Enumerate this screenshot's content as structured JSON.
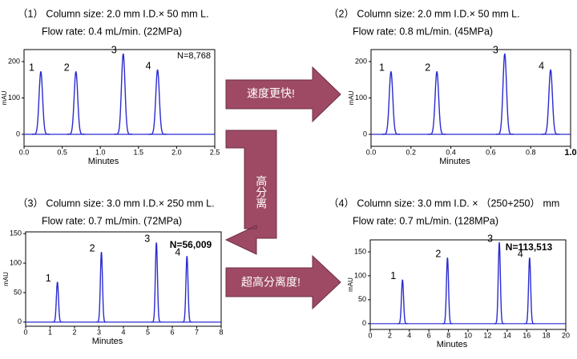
{
  "chart_data": [
    {
      "type": "peaks",
      "title": "（1） Column size: 2.0 mm I.D.× 50 mm L.",
      "subtitle": "Flow rate: 0.4 mL/min. (22MPa)",
      "x_label": "Minutes",
      "y_label": "mAU",
      "color": "#2b2bd0",
      "xlim": [
        0,
        2.5
      ],
      "xticks": [
        {
          "value": 0,
          "label": "0.0"
        },
        0.5,
        {
          "value": 1,
          "label": "1.0"
        },
        1.5,
        {
          "value": 2,
          "label": "2.0"
        },
        2.5
      ],
      "ylim": [
        -33,
        233
      ],
      "yticks": [
        0,
        100,
        200
      ],
      "peak_labels": [
        "1",
        "2",
        "3",
        "4"
      ],
      "x": [
        0.22,
        0.68,
        1.3,
        1.75
      ],
      "values": [
        173,
        173,
        222,
        178
      ],
      "annotation": "N=8,768",
      "annotation_color": "#000000"
    },
    {
      "type": "peaks",
      "title": "（2） Column size: 2.0 mm I.D.× 50 mm L.",
      "subtitle": "Flow rate: 0.8 mL/min. (45MPa)",
      "x_label": "Minutes",
      "y_label": "mAU",
      "color": "#2b2bd0",
      "xlim": [
        0,
        1.0
      ],
      "xticks": [
        {
          "value": 0,
          "label": "0.0"
        },
        0.2,
        0.4,
        0.6,
        0.8,
        {
          "value": 1,
          "label": "1.0",
          "color": "#e00000"
        }
      ],
      "ylim": [
        -33,
        233
      ],
      "yticks": [
        0,
        100,
        200
      ],
      "peak_labels": [
        "1",
        "2",
        "3",
        "4"
      ],
      "x": [
        0.1,
        0.33,
        0.67,
        0.9
      ],
      "values": [
        173,
        173,
        222,
        178
      ]
    },
    {
      "type": "peaks",
      "title": "（3） Column size: 3.0 mm I.D.× 250 mm L.",
      "subtitle": "Flow rate: 0.7 mL/min. (72MPa)",
      "x_label": "Minutes",
      "y_label": "mAU",
      "color": "#2b2bd0",
      "xlim": [
        0,
        8
      ],
      "xticks": [
        0,
        1,
        2,
        3,
        4,
        5,
        6,
        7,
        8
      ],
      "ylim": [
        -7,
        153
      ],
      "yticks": [
        0,
        50,
        100,
        150
      ],
      "peak_labels": [
        "1",
        "2",
        "3",
        "4"
      ],
      "x": [
        1.3,
        3.1,
        5.35,
        6.6
      ],
      "values": [
        68,
        119,
        135,
        112
      ],
      "annotation": "N=56,009",
      "annotation_color": "#e00000"
    },
    {
      "type": "peaks",
      "title": "（4） Column size: 3.0 mm I.D. × （250+250） mm",
      "subtitle": "Flow rate: 0.7 mL/min. (128MPa)",
      "x_label": "Minutes",
      "y_label": "mAU",
      "color": "#2b2bd0",
      "xlim": [
        0,
        20
      ],
      "xticks": [
        0,
        2,
        4,
        6,
        8,
        10,
        12,
        14,
        16,
        18,
        20
      ],
      "ylim": [
        -12,
        175
      ],
      "yticks": [
        0,
        50,
        100,
        150
      ],
      "peak_labels": [
        "1",
        "2",
        "3",
        "4"
      ],
      "x": [
        3.3,
        7.9,
        13.2,
        16.3
      ],
      "values": [
        92,
        138,
        170,
        138
      ],
      "annotation": "N=113,513",
      "annotation_color": "#e00000"
    }
  ],
  "arrows": [
    "速度更快!",
    "高分离",
    "超高分离度!"
  ]
}
